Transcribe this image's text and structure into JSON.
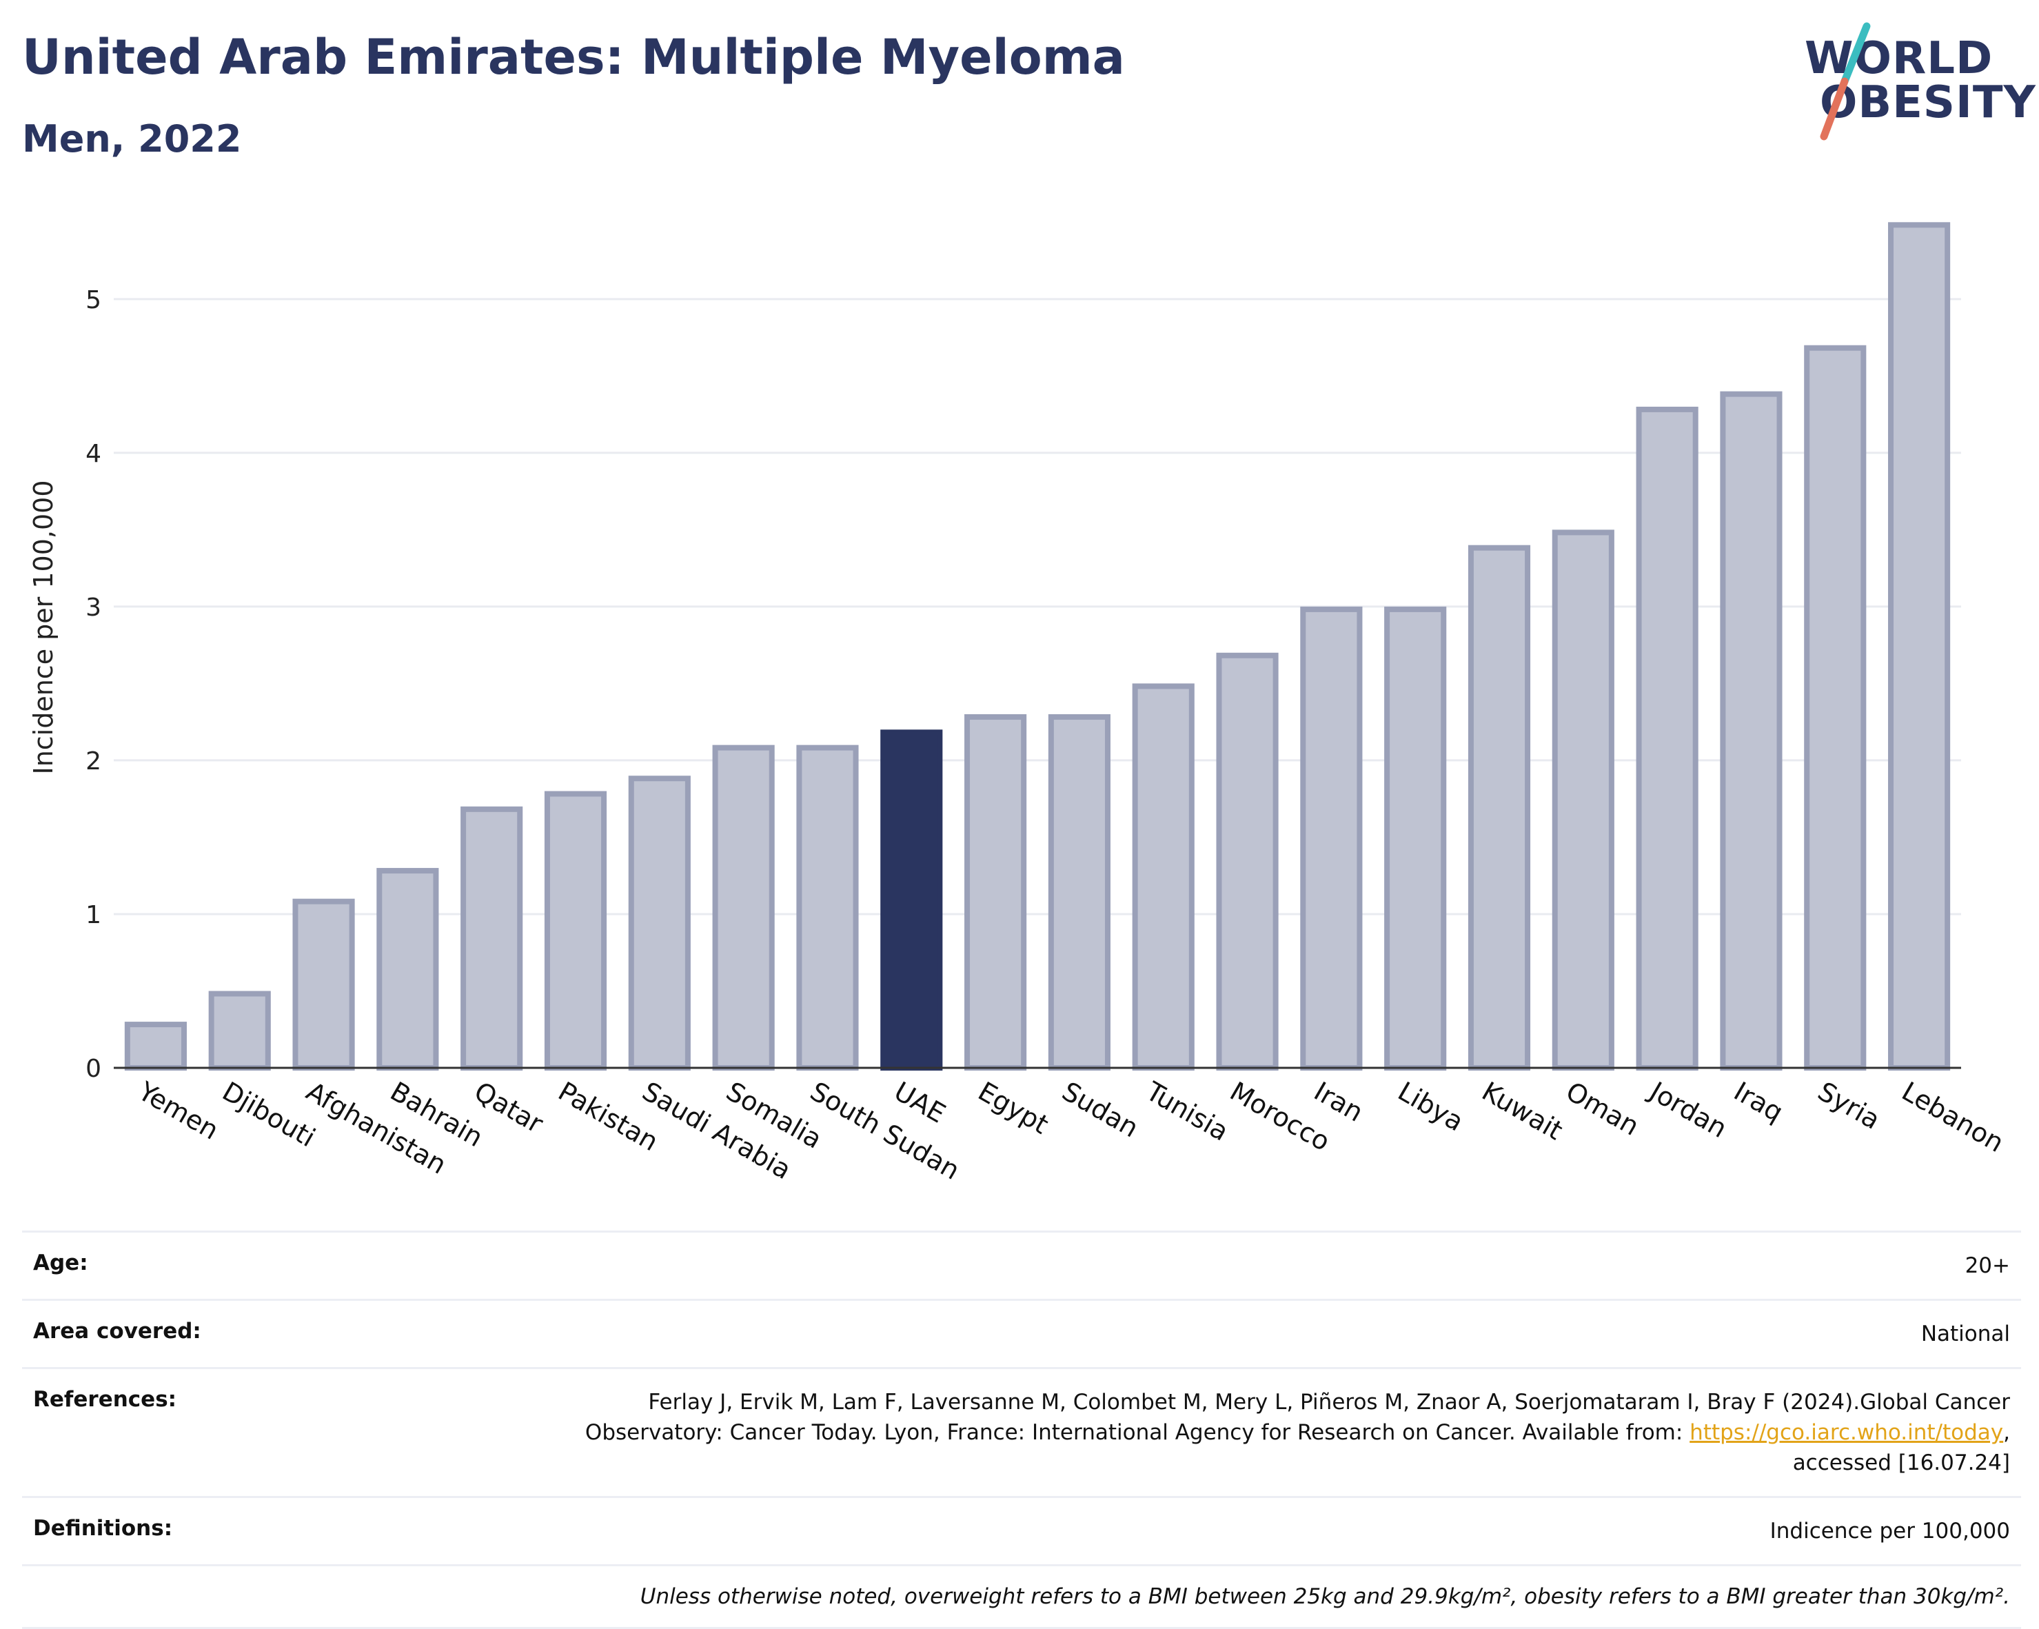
{
  "title": "United Arab Emirates: Multiple Myeloma",
  "subtitle": "Men, 2022",
  "logo": {
    "line1": "WORLD",
    "line2": "OBESITY"
  },
  "colors": {
    "highlight": "#2a3560",
    "bar": "#bfc3d2",
    "bar_border": "#9aa0b8",
    "grid": "#e9ebf0"
  },
  "chart_data": {
    "type": "bar",
    "ylabel": "Incidence per 100,000",
    "ylim": [
      0,
      5.6
    ],
    "yticks": [
      0,
      1,
      2,
      3,
      4,
      5
    ],
    "grid": true,
    "highlight": "UAE",
    "categories": [
      "Yemen",
      "Djibouti",
      "Afghanistan",
      "Bahrain",
      "Qatar",
      "Pakistan",
      "Saudi Arabia",
      "Somalia",
      "South Sudan",
      "UAE",
      "Egypt",
      "Sudan",
      "Tunisia",
      "Morocco",
      "Iran",
      "Libya",
      "Kuwait",
      "Oman",
      "Jordan",
      "Iraq",
      "Syria",
      "Lebanon"
    ],
    "values": [
      0.3,
      0.5,
      1.1,
      1.3,
      1.7,
      1.8,
      1.9,
      2.1,
      2.1,
      2.2,
      2.3,
      2.3,
      2.5,
      2.7,
      3.0,
      3.0,
      3.4,
      3.5,
      4.3,
      4.4,
      4.7,
      5.5
    ]
  },
  "meta": {
    "age_label": "Age:",
    "age_value": "20+",
    "area_label": "Area covered:",
    "area_value": "National",
    "references_label": "References:",
    "references_text_1": "Ferlay J, Ervik M, Lam F, Laversanne M, Colombet M, Mery L, Piñeros M, Znaor A, Soerjomataram I, Bray F (2024).Global Cancer Observatory: Cancer Today. Lyon, France: International Agency for Research on Cancer. Available from: ",
    "references_link": "https://gco.iarc.who.int/today",
    "references_text_2": ", accessed [16.07.24]",
    "definitions_label": "Definitions:",
    "definitions_value": "Indicence per 100,000",
    "note": "Unless otherwise noted, overweight refers to a BMI between 25kg and 29.9kg/m², obesity refers to a BMI greater than 30kg/m²."
  }
}
